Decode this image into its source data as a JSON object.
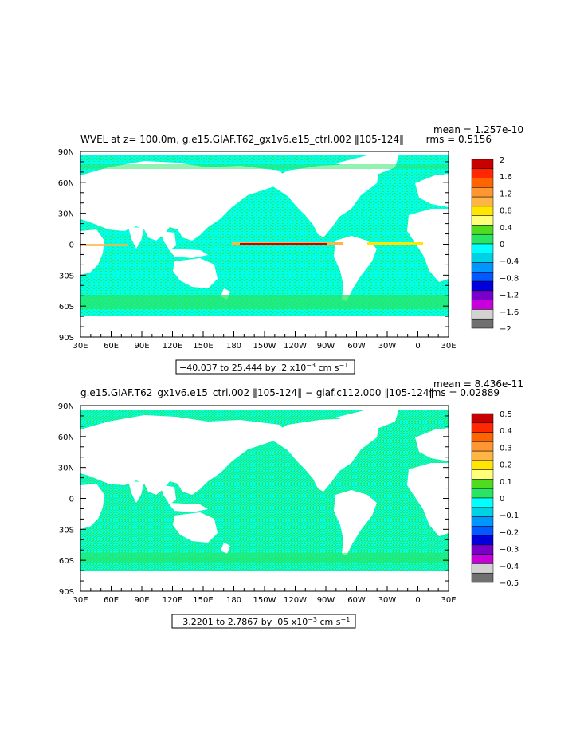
{
  "panels": [
    {
      "title": "WVEL at z= 100.0m, g.e15.GIAF.T62_gx1v6.e15_ctrl.002 ‖105-124‖",
      "stat_mean": "mean = 1.257e-10",
      "stat_rms": "rms = 0.5156",
      "range_prefix": "−40.037 to 25.444 by .2 x10",
      "range_exp": "−3",
      "range_units": " cm s",
      "range_units_exp": "−1",
      "colorbar_labels": [
        "2",
        "1.6",
        "1.2",
        "0.8",
        "0.4",
        "0",
        "−0.4",
        "−0.8",
        "−1.2",
        "−1.6",
        "−2"
      ],
      "colorbar_colors": [
        "#C80000",
        "#FF2800",
        "#FF6400",
        "#FF9632",
        "#FFB446",
        "#FFE600",
        "#FFFF78",
        "#50DC1E",
        "#28E664",
        "#00FFFF",
        "#00D2E6",
        "#0096FF",
        "#005AFF",
        "#0000DC",
        "#7800C8",
        "#C800DC",
        "#D2D2D2",
        "#707070"
      ]
    },
    {
      "title": "g.e15.GIAF.T62_gx1v6.e15_ctrl.002 ‖105-124‖ − giaf.c112.000 ‖105-124‖",
      "stat_mean": "mean = 8.436e-11",
      "stat_rms": "rms = 0.02889",
      "range_prefix": "−3.2201 to 2.7867 by .05 x10",
      "range_exp": "−3",
      "range_units": " cm s",
      "range_units_exp": "−1",
      "colorbar_labels": [
        "0.5",
        "0.4",
        "0.3",
        "0.2",
        "0.1",
        "0",
        "−0.1",
        "−0.2",
        "−0.3",
        "−0.4",
        "−0.5"
      ],
      "colorbar_colors": [
        "#C80000",
        "#FF2800",
        "#FF6400",
        "#FF9632",
        "#FFB446",
        "#FFE600",
        "#FFFF78",
        "#50DC1E",
        "#28E664",
        "#00FFFF",
        "#00D2E6",
        "#0096FF",
        "#005AFF",
        "#0000DC",
        "#7800C8",
        "#C800DC",
        "#D2D2D2",
        "#707070"
      ]
    }
  ],
  "lat_labels": [
    "90N",
    "60N",
    "30N",
    "0",
    "30S",
    "60S",
    "90S"
  ],
  "lon_labels": [
    "30E",
    "60E",
    "90E",
    "120E",
    "150E",
    "180",
    "150W",
    "120W",
    "90W",
    "60W",
    "30W",
    "0",
    "30E"
  ],
  "ocean_colors": {
    "base": "#00FFE6",
    "green": "#28E664",
    "land": "#FFFFFF"
  }
}
